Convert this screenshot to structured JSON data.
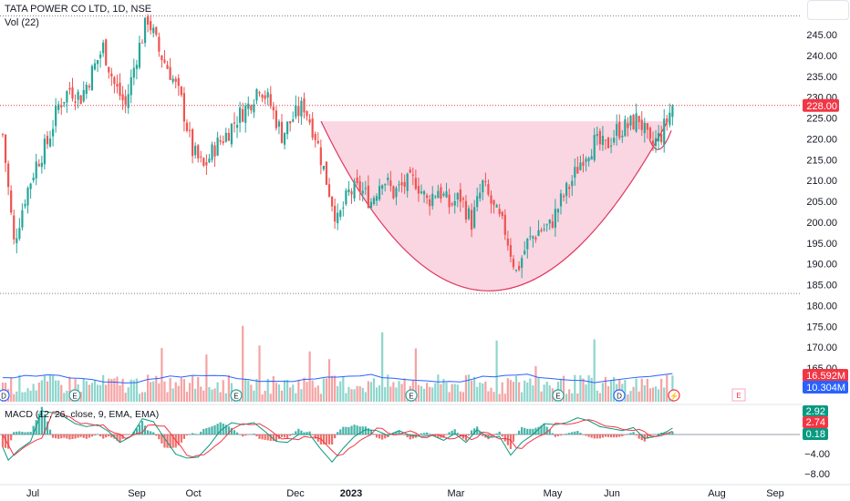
{
  "header": {
    "title": "TATA POWER CO LTD, 1D, NSE",
    "vol_label": "Vol (22)"
  },
  "menu": {
    "icon": "menu-icon"
  },
  "colors": {
    "up": "#26a69a",
    "down": "#ef5350",
    "up_vol": "#8ed6cd",
    "down_vol": "#f5a3a3",
    "cup_fill": "#f8c8d8",
    "cup_line": "#e0365e",
    "vol_ma": "#2962ff",
    "macd": "#089981",
    "signal": "#f23645",
    "price_badge": "#f23645",
    "vol_badge_1": "#f23645",
    "vol_badge_2": "#2962ff",
    "macd_badge_1": "#089981",
    "macd_badge_2": "#f23645",
    "macd_badge_3": "#089981"
  },
  "badges": {
    "price": "228.00",
    "vol_1": "16.592M",
    "vol_2": "10.304M",
    "macd_1": "2.92",
    "macd_2": "2.74",
    "macd_3": "0.18"
  },
  "macd_label": "MACD (12, 26, close, 9, EMA, EMA)",
  "event_markers": [
    {
      "label": "D",
      "kind": "dividend"
    },
    {
      "label": "E",
      "kind": "earnings"
    },
    {
      "label": "E",
      "kind": "earnings"
    },
    {
      "label": "E",
      "kind": "earnings"
    },
    {
      "label": "E",
      "kind": "earnings"
    },
    {
      "label": "D",
      "kind": "dividend"
    },
    {
      "label": "⚡",
      "kind": "split"
    },
    {
      "label": "E",
      "kind": "earnings_future"
    }
  ],
  "chart_data": {
    "type": "candlestick",
    "title": "TATA POWER CO LTD, 1D, NSE",
    "x_ticks": [
      "Jul",
      "Sep",
      "Oct",
      "Dec",
      "2023",
      "Mar",
      "May",
      "Jun",
      "Aug",
      "Sep"
    ],
    "price_ticks": [
      "245.00",
      "240.00",
      "235.00",
      "230.00",
      "225.00",
      "220.00",
      "215.00",
      "210.00",
      "205.00",
      "200.00",
      "195.00",
      "190.00",
      "185.00",
      "180.00",
      "175.00",
      "170.00",
      "165.00"
    ],
    "macd_ticks": [
      "−4.00",
      "−8.00"
    ],
    "price_range": [
      163,
      250
    ],
    "last_price": 228.0,
    "high_line": 249.5,
    "low_line": 182.9,
    "price_path": [
      [
        0,
        221
      ],
      [
        4,
        195
      ],
      [
        8,
        206
      ],
      [
        12,
        214
      ],
      [
        16,
        219
      ],
      [
        20,
        228
      ],
      [
        24,
        232
      ],
      [
        28,
        230
      ],
      [
        32,
        236
      ],
      [
        36,
        242
      ],
      [
        40,
        233
      ],
      [
        44,
        228
      ],
      [
        48,
        240
      ],
      [
        52,
        249
      ],
      [
        56,
        241
      ],
      [
        60,
        236
      ],
      [
        64,
        229
      ],
      [
        68,
        217
      ],
      [
        72,
        213
      ],
      [
        76,
        218
      ],
      [
        80,
        221
      ],
      [
        84,
        225
      ],
      [
        88,
        228
      ],
      [
        92,
        233
      ],
      [
        96,
        228
      ],
      [
        100,
        221
      ],
      [
        104,
        225
      ],
      [
        108,
        228
      ],
      [
        112,
        221
      ],
      [
        116,
        210
      ],
      [
        120,
        200
      ],
      [
        124,
        207
      ],
      [
        128,
        208
      ],
      [
        132,
        205
      ],
      [
        136,
        211
      ],
      [
        140,
        207
      ],
      [
        144,
        209
      ],
      [
        148,
        210
      ],
      [
        152,
        205
      ],
      [
        156,
        208
      ],
      [
        160,
        204
      ],
      [
        164,
        206
      ],
      [
        168,
        200
      ],
      [
        172,
        209
      ],
      [
        176,
        203
      ],
      [
        180,
        198
      ],
      [
        184,
        188
      ],
      [
        188,
        195
      ],
      [
        192,
        198
      ],
      [
        196,
        199
      ],
      [
        200,
        205
      ],
      [
        204,
        210
      ],
      [
        208,
        216
      ],
      [
        212,
        219
      ],
      [
        216,
        218
      ],
      [
        220,
        222
      ],
      [
        224,
        223
      ],
      [
        228,
        225
      ],
      [
        232,
        218
      ],
      [
        236,
        221
      ],
      [
        240,
        228
      ]
    ],
    "volume_ma": "blue line",
    "macd_series": [
      "MACD",
      "Signal",
      "Histogram"
    ]
  }
}
